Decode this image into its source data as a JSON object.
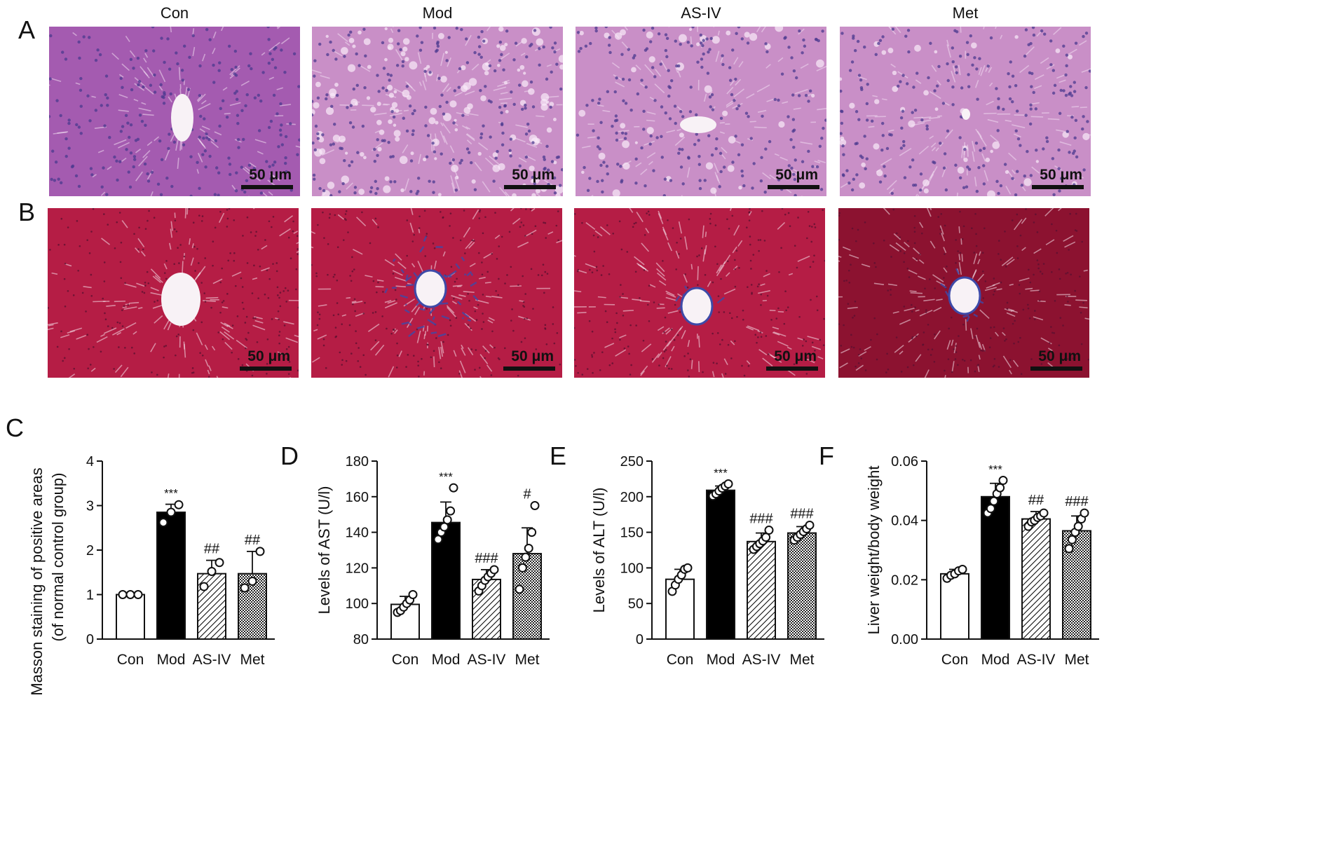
{
  "panel_letters": {
    "a": "A",
    "b": "B",
    "c": "C",
    "d": "D",
    "e": "E",
    "f": "F"
  },
  "column_titles": [
    "Con",
    "Mod",
    "AS-IV",
    "Met"
  ],
  "scale_bar_label": "50 μm",
  "colors": {
    "he_pink": "#c98fc7",
    "he_con": "#a45bb0",
    "masson_red": "#b51d45",
    "masson_dark": "#8c1230",
    "collagen_blue": "#3e4aa8",
    "bar_black": "#000000",
    "bar_white": "#ffffff"
  },
  "chart_data": [
    {
      "type": "bar",
      "panel": "C",
      "ylabel": "Masson staining of positive areas",
      "ylabel2": "(of normal control group)",
      "categories": [
        "Con",
        "Mod",
        "AS-IV",
        "Met"
      ],
      "fills": [
        "white",
        "black",
        "hatch",
        "cross"
      ],
      "ylim": [
        0,
        4
      ],
      "yticks": [
        0,
        1,
        2,
        3,
        4
      ],
      "tick_labels": [
        "0",
        "1",
        "2",
        "3",
        "4"
      ],
      "values": [
        1.0,
        2.85,
        1.47,
        1.47
      ],
      "errors": [
        0.0,
        0.18,
        0.3,
        0.5
      ],
      "points": [
        [
          1.0,
          1.0,
          1.0
        ],
        [
          2.62,
          2.85,
          3.02
        ],
        [
          1.18,
          1.52,
          1.72
        ],
        [
          1.15,
          1.3,
          1.97
        ]
      ],
      "annotations": [
        "",
        "***",
        "##",
        "##"
      ]
    },
    {
      "type": "bar",
      "panel": "D",
      "ylabel": "Levels of AST (U/l)",
      "categories": [
        "Con",
        "Mod",
        "AS-IV",
        "Met"
      ],
      "fills": [
        "white",
        "black",
        "hatch",
        "cross"
      ],
      "ylim": [
        80,
        180
      ],
      "yticks": [
        80,
        100,
        120,
        140,
        160,
        180
      ],
      "tick_labels": [
        "80",
        "100",
        "120",
        "140",
        "160",
        "180"
      ],
      "values": [
        99.5,
        145.5,
        113.5,
        128
      ],
      "errors": [
        4.5,
        11.5,
        5.5,
        14.5
      ],
      "points": [
        [
          95,
          96,
          98,
          100,
          102,
          105
        ],
        [
          136,
          140,
          143,
          147,
          152,
          165
        ],
        [
          107,
          110,
          113,
          115,
          117,
          119
        ],
        [
          108,
          120,
          126,
          131,
          140,
          155
        ]
      ],
      "annotations": [
        "",
        "***",
        "###",
        "#"
      ]
    },
    {
      "type": "bar",
      "panel": "E",
      "ylabel": "Levels of ALT (U/l)",
      "categories": [
        "Con",
        "Mod",
        "AS-IV",
        "Met"
      ],
      "fills": [
        "white",
        "black",
        "hatch",
        "cross"
      ],
      "ylim": [
        0,
        250
      ],
      "yticks": [
        0,
        50,
        100,
        150,
        200,
        250
      ],
      "tick_labels": [
        "0",
        "50",
        "100",
        "150",
        "200",
        "250"
      ],
      "values": [
        84,
        209,
        137,
        149
      ],
      "errors": [
        14,
        6,
        12,
        9
      ],
      "points": [
        [
          67,
          76,
          84,
          90,
          98,
          100
        ],
        [
          201,
          204,
          208,
          212,
          215,
          218
        ],
        [
          126,
          130,
          134,
          138,
          143,
          153
        ],
        [
          139,
          143,
          147,
          151,
          155,
          160
        ]
      ],
      "annotations": [
        "",
        "***",
        "###",
        "###"
      ]
    },
    {
      "type": "bar",
      "panel": "F",
      "ylabel": "Liver weight/body weight",
      "categories": [
        "Con",
        "Mod",
        "AS-IV",
        "Met"
      ],
      "fills": [
        "white",
        "black",
        "hatch",
        "cross"
      ],
      "ylim": [
        0.0,
        0.06
      ],
      "yticks": [
        0.0,
        0.02,
        0.04,
        0.06
      ],
      "tick_labels": [
        "0.00",
        "0.02",
        "0.04",
        "0.06"
      ],
      "values": [
        0.022,
        0.048,
        0.0405,
        0.0365
      ],
      "errors": [
        0.0015,
        0.0045,
        0.0025,
        0.005
      ],
      "points": [
        [
          0.0205,
          0.0215,
          0.022,
          0.023,
          0.0235
        ],
        [
          0.0425,
          0.044,
          0.0465,
          0.049,
          0.051,
          0.0535
        ],
        [
          0.038,
          0.0395,
          0.04,
          0.041,
          0.0415,
          0.0425
        ],
        [
          0.0305,
          0.0335,
          0.036,
          0.038,
          0.0405,
          0.0425
        ]
      ],
      "annotations": [
        "",
        "***",
        "##",
        "###"
      ]
    }
  ]
}
